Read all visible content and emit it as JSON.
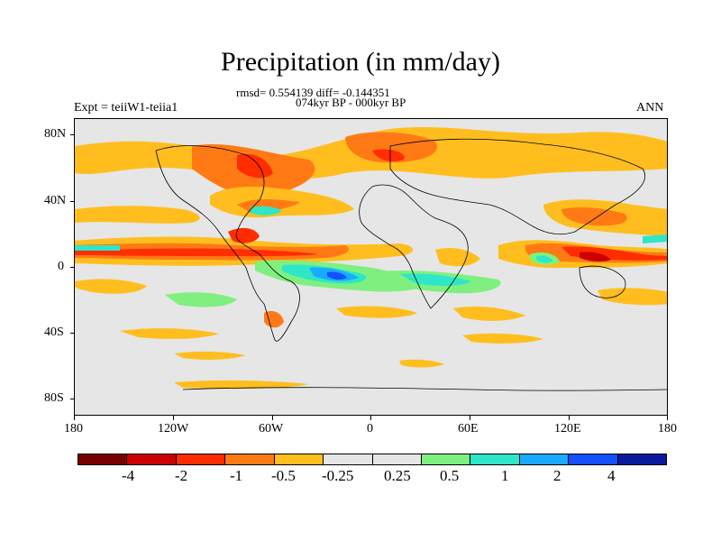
{
  "title": "Precipitation (in mm/day)",
  "stats_line": "rmsd= 0.554139 diff= -0.144351",
  "period_line": "074kyr BP - 000kyr BP",
  "expt_label": "Expt = teiiW1-teiia1",
  "season_label": "ANN",
  "y_axis": {
    "tick_labels": [
      "80N",
      "40N",
      "0",
      "40S",
      "80S"
    ],
    "tick_values": [
      80,
      40,
      0,
      -40,
      -80
    ],
    "range": [
      -90,
      90
    ]
  },
  "x_axis": {
    "tick_labels": [
      "180",
      "120W",
      "60W",
      "0",
      "60E",
      "120E",
      "180"
    ],
    "tick_values": [
      -180,
      -120,
      -60,
      0,
      60,
      120,
      180
    ],
    "range": [
      -180,
      180
    ]
  },
  "colorbar": {
    "colors": [
      "#7a0000",
      "#cc0000",
      "#ff2d00",
      "#ff7a14",
      "#ffbe1e",
      "#e6e6e6",
      "#e6e6e6",
      "#7ff07f",
      "#2ee6c8",
      "#1aaaff",
      "#1450ff",
      "#0a1aa0"
    ],
    "labels": [
      "-4",
      "-2",
      "-1",
      "-0.5",
      "-0.25",
      "0.25",
      "0.5",
      "1",
      "2",
      "4"
    ]
  },
  "background_color": "#e6e6e6"
}
